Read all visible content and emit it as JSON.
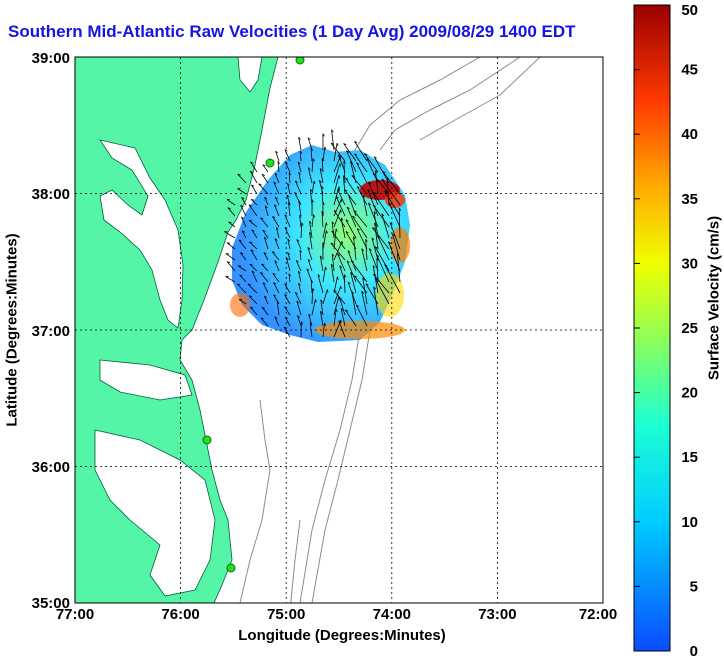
{
  "title": "Southern Mid-Atlantic Raw Velocities (1 Day Avg) 2009/08/29 1400 EDT",
  "xlabel": "Longitude (Degrees:Minutes)",
  "ylabel": "Latitude (Degrees:Minutes)",
  "colorbar": {
    "label": "Surface Velocity (cm/s)",
    "ticks": [
      "0",
      "5",
      "10",
      "15",
      "20",
      "25",
      "30",
      "35",
      "40",
      "45",
      "50"
    ],
    "range": [
      0,
      50
    ]
  },
  "axes": {
    "x_ticks": [
      "77:00",
      "76:00",
      "75:00",
      "74:00",
      "73:00",
      "72:00"
    ],
    "y_ticks": [
      "39:00",
      "38:00",
      "37:00",
      "36:00",
      "35:00"
    ],
    "lon_range": [
      -77,
      -72
    ],
    "lat_range": [
      35,
      39
    ],
    "grid": true
  },
  "colors": {
    "land": "#55f5a8",
    "title": "#1414e6",
    "bathymetry": "#8c8c8c"
  }
}
